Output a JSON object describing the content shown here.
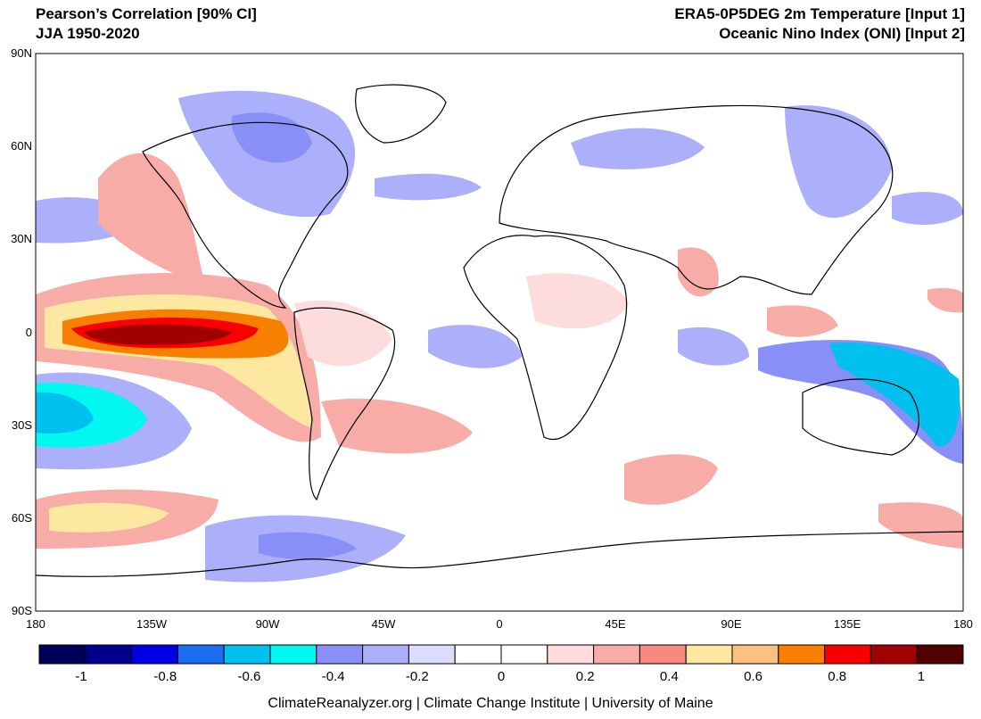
{
  "header": {
    "left": [
      "Pearson’s Correlation [90% CI]",
      "JJA 1950-2020"
    ],
    "right": [
      "ERA5-0P5DEG 2m Temperature [Input 1]",
      "Oceanic Nino Index (ONI) [Input 2]"
    ]
  },
  "axes": {
    "lat_labels": [
      "90N",
      "60N",
      "30N",
      "0",
      "30S",
      "60S",
      "90S"
    ],
    "lon_labels": [
      "180",
      "135W",
      "90W",
      "45W",
      "0",
      "45E",
      "90E",
      "135E",
      "180"
    ]
  },
  "colorbar": {
    "colors": [
      "#00005a",
      "#000090",
      "#0000e6",
      "#1c6ef0",
      "#00c0f0",
      "#00f8f0",
      "#8890f8",
      "#acb0fa",
      "#dcdcfc",
      "#ffffff",
      "#ffffff",
      "#fcdcdc",
      "#f8aca8",
      "#f88880",
      "#fce8a0",
      "#fcc080",
      "#f88000",
      "#f80000",
      "#a00000",
      "#500000"
    ],
    "tick_values": [
      -1,
      -0.8,
      -0.6,
      -0.4,
      -0.2,
      0,
      0.2,
      0.4,
      0.6,
      0.8,
      1
    ],
    "tick_labels": [
      "-1",
      "-0.8",
      "-0.6",
      "-0.4",
      "-0.2",
      "0",
      "0.2",
      "0.4",
      "0.6",
      "0.8",
      "1"
    ]
  },
  "footer": "ClimateReanalyzer.org | Climate Change Institute | University of Maine"
}
